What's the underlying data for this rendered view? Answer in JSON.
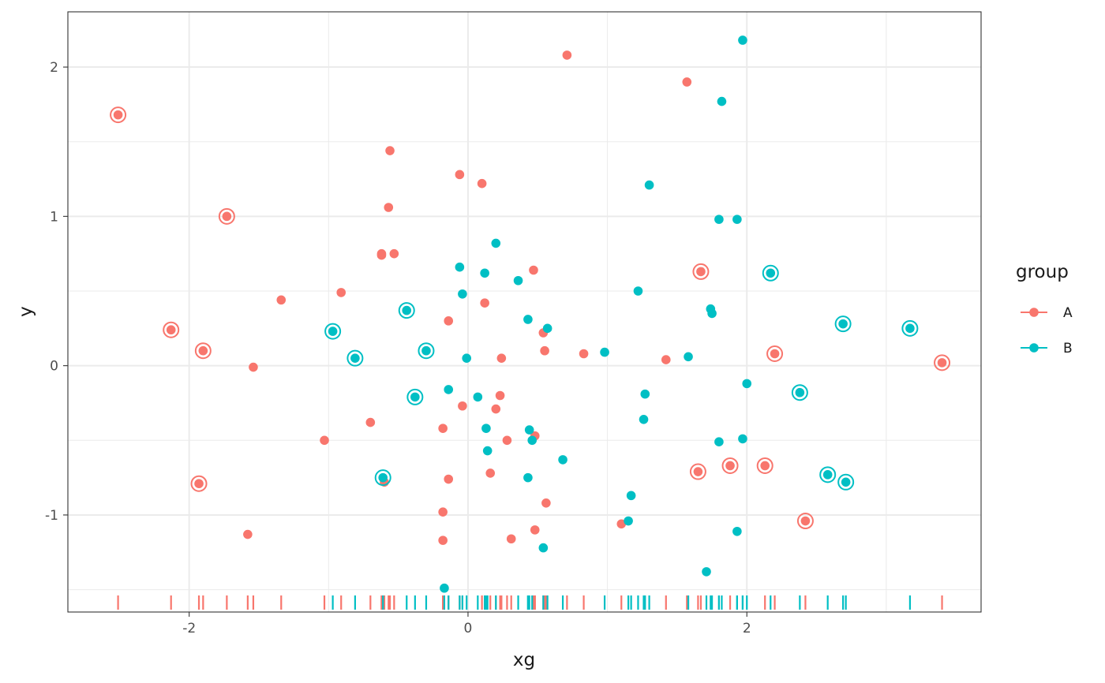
{
  "chart_data": {
    "type": "scatter",
    "title": "",
    "xlabel": "xg",
    "ylabel": "y",
    "xlim": [
      -2.87,
      3.68
    ],
    "ylim": [
      -1.65,
      2.37
    ],
    "x_ticks": [
      -2,
      0,
      2
    ],
    "x_tick_labels": [
      "-2",
      "0",
      "2"
    ],
    "y_ticks": [
      -1,
      0,
      1,
      2
    ],
    "y_tick_labels": [
      "-1",
      "0",
      "1",
      "2"
    ],
    "grid": true,
    "rug": "bottom",
    "legend": {
      "title": "group",
      "placement": "right",
      "entries": [
        "A",
        "B"
      ]
    },
    "colors": {
      "A": "#f8766d",
      "B": "#00bfc4"
    },
    "series": [
      {
        "name": "A",
        "points": [
          [
            -2.51,
            1.68
          ],
          [
            -2.13,
            0.24
          ],
          [
            -1.9,
            0.1
          ],
          [
            -1.93,
            -0.79
          ],
          [
            -1.73,
            1.0
          ],
          [
            -1.58,
            -1.13
          ],
          [
            -1.54,
            -0.01
          ],
          [
            -1.34,
            0.44
          ],
          [
            -1.03,
            -0.5
          ],
          [
            -0.91,
            0.49
          ],
          [
            -0.7,
            -0.38
          ],
          [
            -0.62,
            0.74
          ],
          [
            -0.62,
            0.75
          ],
          [
            -0.57,
            1.06
          ],
          [
            -0.56,
            1.44
          ],
          [
            -0.53,
            0.75
          ],
          [
            -0.6,
            -0.78
          ],
          [
            -0.18,
            -0.42
          ],
          [
            -0.18,
            -0.98
          ],
          [
            -0.18,
            -1.17
          ],
          [
            -0.14,
            0.3
          ],
          [
            -0.14,
            -0.76
          ],
          [
            -0.06,
            1.28
          ],
          [
            -0.04,
            -0.27
          ],
          [
            0.1,
            1.22
          ],
          [
            0.12,
            0.42
          ],
          [
            0.16,
            -0.72
          ],
          [
            0.2,
            -0.29
          ],
          [
            0.23,
            -0.2
          ],
          [
            0.24,
            0.05
          ],
          [
            0.28,
            -0.5
          ],
          [
            0.31,
            -1.16
          ],
          [
            0.47,
            0.64
          ],
          [
            0.48,
            -0.47
          ],
          [
            0.48,
            -1.1
          ],
          [
            0.54,
            0.22
          ],
          [
            0.55,
            0.1
          ],
          [
            0.56,
            -0.92
          ],
          [
            0.71,
            2.08
          ],
          [
            0.83,
            0.08
          ],
          [
            1.1,
            -1.06
          ],
          [
            1.42,
            0.04
          ],
          [
            1.57,
            1.9
          ],
          [
            1.65,
            -0.71
          ],
          [
            1.67,
            0.63
          ],
          [
            1.88,
            -0.67
          ],
          [
            2.13,
            -0.67
          ],
          [
            2.2,
            0.08
          ],
          [
            2.42,
            -1.04
          ],
          [
            3.4,
            0.02
          ]
        ],
        "circled": [
          [
            -2.51,
            1.68
          ],
          [
            -2.13,
            0.24
          ],
          [
            -1.9,
            0.1
          ],
          [
            -1.93,
            -0.79
          ],
          [
            -1.73,
            1.0
          ],
          [
            1.65,
            -0.71
          ],
          [
            1.67,
            0.63
          ],
          [
            1.88,
            -0.67
          ],
          [
            2.13,
            -0.67
          ],
          [
            2.2,
            0.08
          ],
          [
            2.42,
            -1.04
          ],
          [
            3.4,
            0.02
          ]
        ]
      },
      {
        "name": "B",
        "points": [
          [
            -0.97,
            0.23
          ],
          [
            -0.81,
            0.05
          ],
          [
            -0.61,
            -0.75
          ],
          [
            -0.44,
            0.37
          ],
          [
            -0.38,
            -0.21
          ],
          [
            -0.3,
            0.1
          ],
          [
            -0.17,
            -1.49
          ],
          [
            -0.14,
            -0.16
          ],
          [
            -0.06,
            0.66
          ],
          [
            -0.04,
            0.48
          ],
          [
            -0.01,
            0.05
          ],
          [
            0.07,
            -0.21
          ],
          [
            0.12,
            0.62
          ],
          [
            0.13,
            -0.42
          ],
          [
            0.14,
            -0.57
          ],
          [
            0.2,
            0.82
          ],
          [
            0.36,
            0.57
          ],
          [
            0.43,
            0.31
          ],
          [
            0.43,
            -0.75
          ],
          [
            0.44,
            -0.43
          ],
          [
            0.46,
            -0.5
          ],
          [
            0.54,
            -1.22
          ],
          [
            0.57,
            0.25
          ],
          [
            0.68,
            -0.63
          ],
          [
            0.98,
            0.09
          ],
          [
            1.15,
            -1.04
          ],
          [
            1.17,
            -0.87
          ],
          [
            1.22,
            0.5
          ],
          [
            1.26,
            -0.36
          ],
          [
            1.27,
            -0.19
          ],
          [
            1.3,
            1.21
          ],
          [
            1.58,
            0.06
          ],
          [
            1.71,
            -1.38
          ],
          [
            1.74,
            0.38
          ],
          [
            1.75,
            0.35
          ],
          [
            1.8,
            0.98
          ],
          [
            1.8,
            -0.51
          ],
          [
            1.82,
            1.77
          ],
          [
            1.93,
            -1.11
          ],
          [
            1.93,
            0.98
          ],
          [
            1.97,
            -0.49
          ],
          [
            1.97,
            2.18
          ],
          [
            2.0,
            -0.12
          ],
          [
            2.17,
            0.62
          ],
          [
            2.38,
            -0.18
          ],
          [
            2.58,
            -0.73
          ],
          [
            2.69,
            0.28
          ],
          [
            2.71,
            -0.78
          ],
          [
            3.17,
            0.25
          ]
        ],
        "circled": [
          [
            -0.97,
            0.23
          ],
          [
            -0.81,
            0.05
          ],
          [
            -0.61,
            -0.75
          ],
          [
            -0.44,
            0.37
          ],
          [
            -0.38,
            -0.21
          ],
          [
            -0.3,
            0.1
          ],
          [
            2.17,
            0.62
          ],
          [
            2.38,
            -0.18
          ],
          [
            2.58,
            -0.73
          ],
          [
            2.69,
            0.28
          ],
          [
            2.71,
            -0.78
          ],
          [
            3.17,
            0.25
          ]
        ]
      }
    ]
  }
}
